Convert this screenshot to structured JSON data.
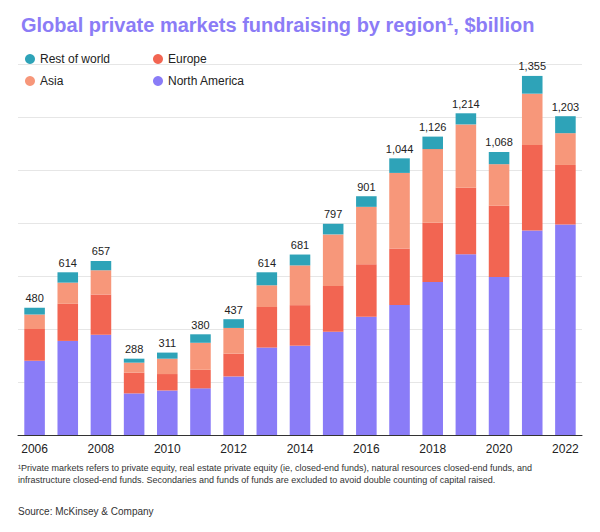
{
  "chart_data": {
    "type": "bar",
    "title": "Global private markets fundraising by region¹, $billion",
    "footnote": "¹Private markets refers to private equity, real estate private equity (ie, closed-end funds), natural resources closed-end funds, and infrastructure closed-end funds. Secondaries and funds of funds are excluded to avoid double counting of capital raised.",
    "source": "Source: McKinsey & Company",
    "categories": [
      "2006",
      null,
      "2008",
      null,
      "2010",
      null,
      "2012",
      null,
      "2014",
      null,
      "2016",
      null,
      "2018",
      null,
      "2020",
      null,
      "2022"
    ],
    "series": [
      {
        "name": "North America",
        "color": "#8a7cf7",
        "values": [
          280,
          355,
          378,
          157,
          168,
          176,
          221,
          330,
          337,
          390,
          446,
          491,
          577,
          682,
          596,
          772,
          794
        ]
      },
      {
        "name": "Europe",
        "color": "#f26552",
        "values": [
          120,
          140,
          152,
          78,
          62,
          70,
          86,
          153,
          153,
          172,
          198,
          213,
          224,
          251,
          269,
          322,
          225
        ]
      },
      {
        "name": "Asia",
        "color": "#f7977a",
        "values": [
          55,
          80,
          92,
          38,
          58,
          102,
          97,
          82,
          150,
          195,
          217,
          285,
          278,
          239,
          157,
          194,
          120
        ]
      },
      {
        "name": "Rest of world",
        "color": "#2ea3b8",
        "values": [
          25,
          39,
          35,
          15,
          23,
          32,
          33,
          49,
          41,
          40,
          40,
          55,
          47,
          42,
          46,
          67,
          64
        ]
      }
    ],
    "totals": [
      480,
      614,
      657,
      288,
      311,
      380,
      437,
      614,
      681,
      797,
      901,
      1044,
      1126,
      1214,
      1068,
      1355,
      1203
    ],
    "total_labels": [
      "480",
      "614",
      "657",
      "288",
      "311",
      "380",
      "437",
      "614",
      "681",
      "797",
      "901",
      "1,044",
      "1,126",
      "1,214",
      "1,068",
      "1,355",
      "1,203"
    ],
    "stacked": true,
    "ylim": [
      0,
      1400
    ],
    "yticks": [
      0,
      200,
      400,
      600,
      800,
      1000,
      1200,
      1400
    ],
    "grid": true,
    "tick_labels": "x",
    "legend": "top-left"
  }
}
